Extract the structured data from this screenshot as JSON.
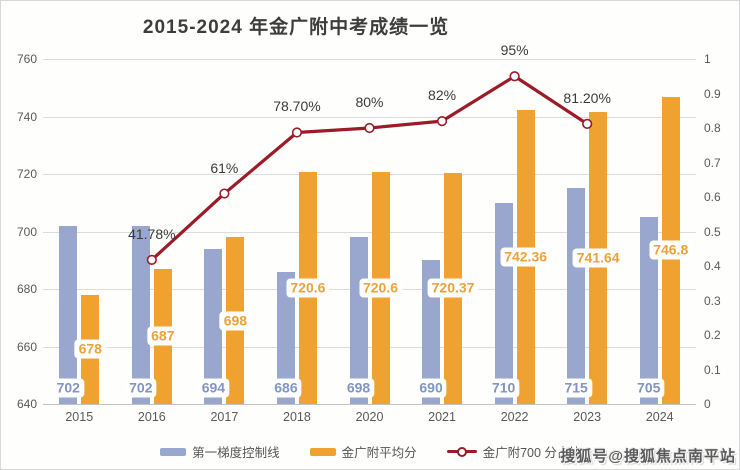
{
  "title": "2015-2024 年金广附中考成绩一览",
  "watermark": "搜狐号@搜狐焦点南平站",
  "colors": {
    "blue_bar": "#99a7ce",
    "orange_bar": "#f0a231",
    "line_red": "#9b1b28",
    "blue_label_text": "#8194c2",
    "orange_label_text": "#e7a33b",
    "grid": "#dcdcdc",
    "axis_text": "#595959"
  },
  "chart_data": {
    "type": "bar",
    "subtype": "combo-bar-line-dual-axis",
    "title": "2015-2024 年金广附中考成绩一览",
    "categories": [
      "2015",
      "2016",
      "2017",
      "2018",
      "2020",
      "2021",
      "2022",
      "2023",
      "2024"
    ],
    "series": [
      {
        "name": "第一梯度控制线",
        "type": "bar",
        "axis": "left",
        "color": "#99a7ce",
        "values": [
          702,
          702,
          694,
          686,
          698,
          690,
          710,
          715,
          705
        ]
      },
      {
        "name": "金广附平均分",
        "type": "bar",
        "axis": "left",
        "color": "#f0a231",
        "values": [
          678,
          687,
          698,
          720.6,
          720.6,
          720.37,
          742.36,
          741.64,
          746.8
        ]
      },
      {
        "name": "金广附700分占比",
        "type": "line",
        "axis": "right",
        "color": "#9b1b28",
        "values": [
          null,
          0.4178,
          0.61,
          0.787,
          0.8,
          0.82,
          0.95,
          0.812,
          null
        ],
        "point_labels": [
          null,
          "41.78%",
          "61%",
          "78.70%",
          "80%",
          "82%",
          "95%",
          "81.20%",
          null
        ]
      }
    ],
    "left_axis": {
      "min": 640,
      "max": 760,
      "step": 20,
      "ticks": [
        "640",
        "660",
        "680",
        "700",
        "720",
        "740",
        "760"
      ]
    },
    "right_axis": {
      "min": 0,
      "max": 1,
      "step": 0.1,
      "ticks": [
        "0",
        "0.1",
        "0.2",
        "0.3",
        "0.4",
        "0.5",
        "0.6",
        "0.7",
        "0.8",
        "0.9",
        "1"
      ]
    },
    "grid": "horizontal",
    "legend_position": "bottom"
  },
  "legend": {
    "items": [
      {
        "label": "第一梯度控制线",
        "swatch": "bar",
        "color": "#99a7ce"
      },
      {
        "label": "金广附平均分",
        "swatch": "bar",
        "color": "#f0a231"
      },
      {
        "label": "金广附700 分占比",
        "swatch": "line",
        "color": "#9b1b28"
      }
    ]
  }
}
